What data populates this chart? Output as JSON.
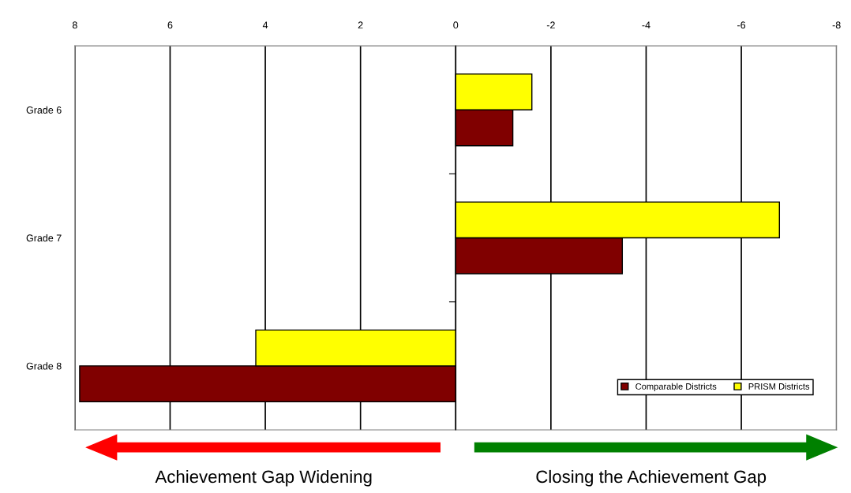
{
  "chart_data": {
    "type": "bar",
    "orientation": "horizontal",
    "categories": [
      "Grade 6",
      "Grade 7",
      "Grade 8"
    ],
    "series": [
      {
        "name": "Comparable Districts",
        "color": "#800000",
        "values": [
          -1.2,
          -3.5,
          7.9
        ]
      },
      {
        "name": "PRISM Districts",
        "color": "#ffff00",
        "values": [
          -1.6,
          -6.8,
          4.2
        ]
      }
    ],
    "xlim": [
      8,
      -8
    ],
    "xticks": [
      8,
      6,
      4,
      2,
      0,
      -2,
      -4,
      -6,
      -8
    ],
    "grid": "x",
    "legend": "bottom right",
    "annotations": [
      "Achievement Gap Widening",
      "Closing the Achievement Gap"
    ]
  }
}
